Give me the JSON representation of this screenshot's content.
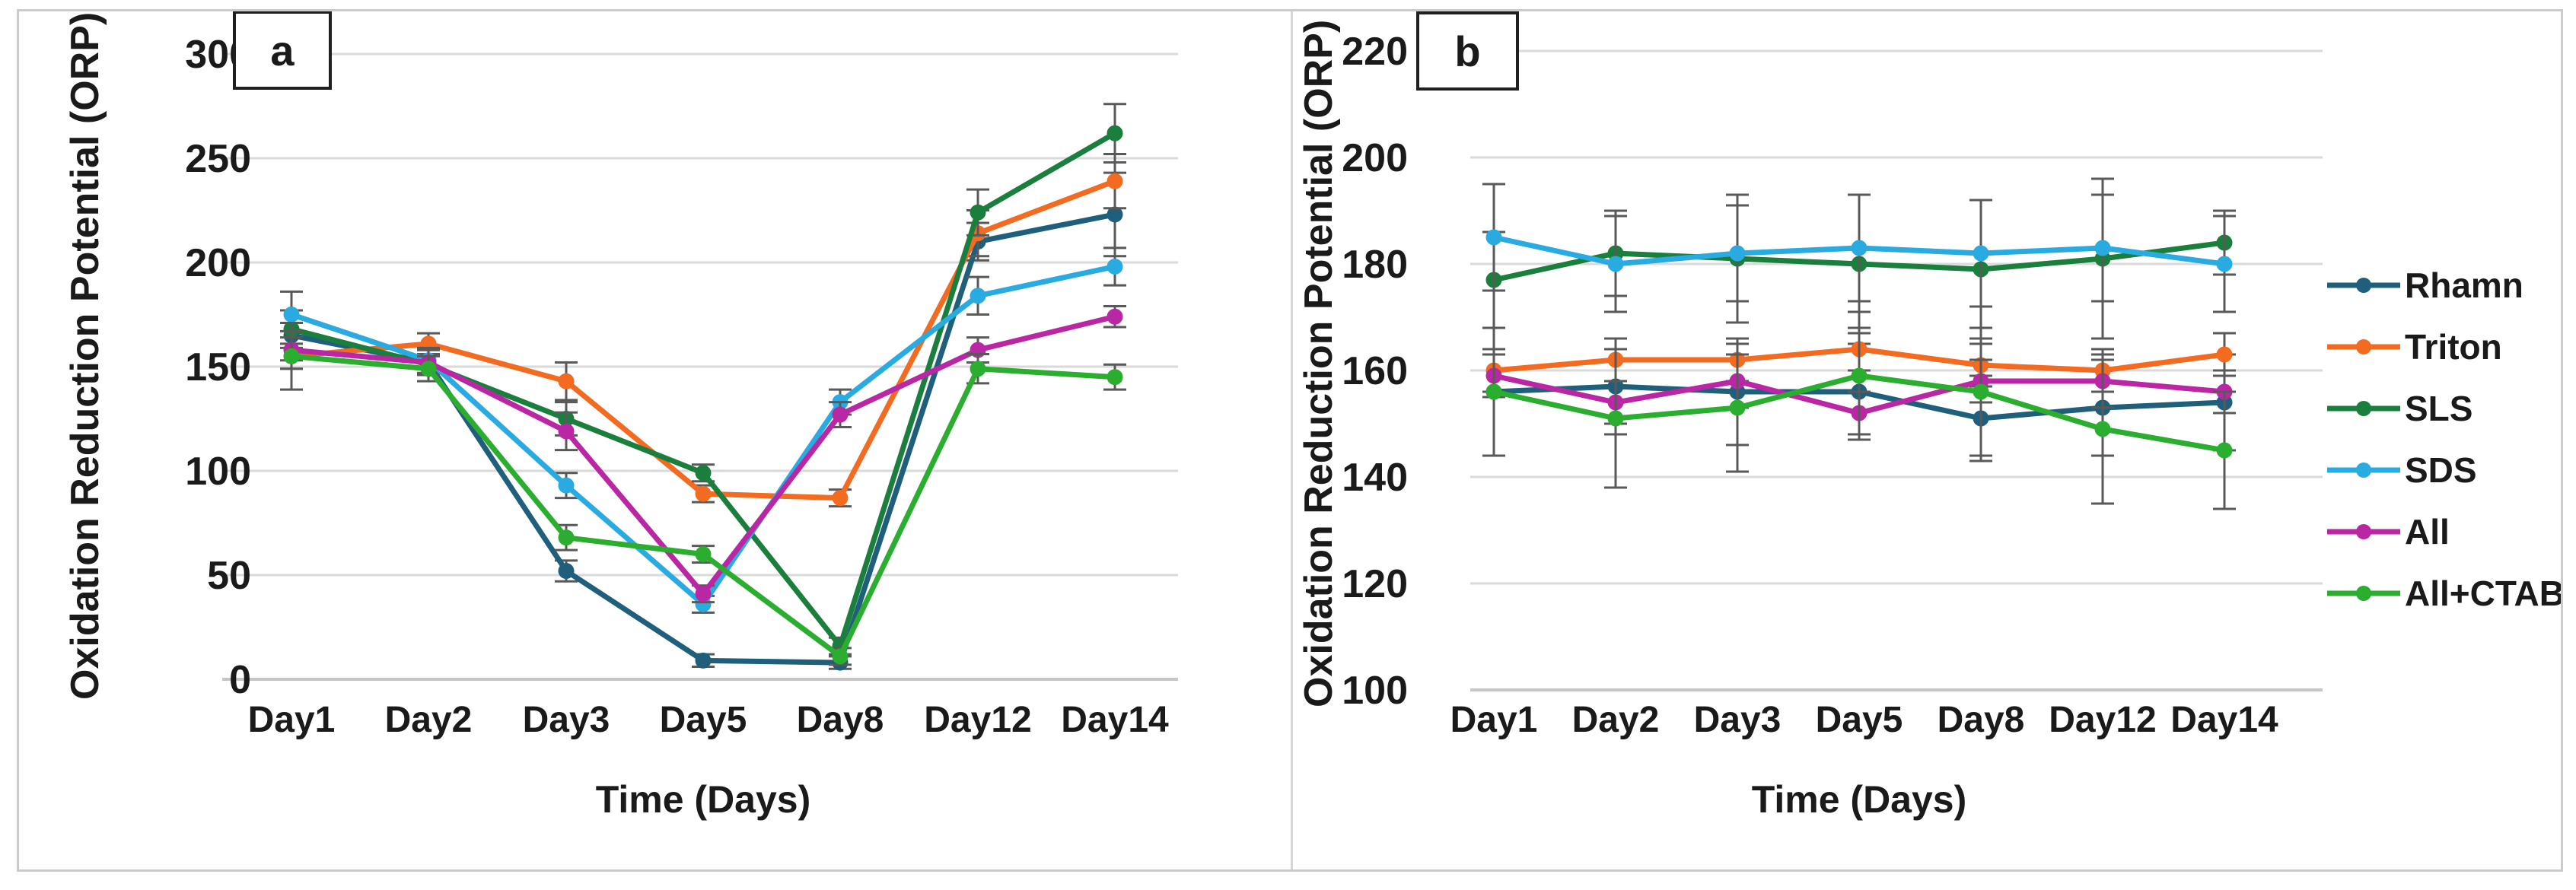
{
  "figure": {
    "panel_a_label": "a",
    "panel_b_label": "b",
    "y_axis_title": "Oxidation Reduction Potential (ORP)",
    "x_axis_title": "Time (Days)"
  },
  "legend": {
    "position": "right",
    "items": [
      {
        "label": "Rhamn",
        "color": "#1F5F7C"
      },
      {
        "label": "Triton",
        "color": "#F26B21"
      },
      {
        "label": "SLS",
        "color": "#1A7E3D"
      },
      {
        "label": "SDS",
        "color": "#29ABE2"
      },
      {
        "label": "All",
        "color": "#BA27A5"
      },
      {
        "label": "All+CTAB",
        "color": "#2BAE2F"
      }
    ]
  },
  "colors": {
    "gridline": "#dadada",
    "axis_line": "#c6c6c6",
    "error_bar": "#595959",
    "text": "#1a1a1a",
    "figure_border": "#cbcbcb"
  },
  "chart_data": [
    {
      "id": "a",
      "type": "line",
      "title": "",
      "categories": [
        "Day1",
        "Day2",
        "Day3",
        "Day5",
        "Day8",
        "Day12",
        "Day14"
      ],
      "xlabel": "Time (Days)",
      "ylabel": "Oxidation Reduction Potential (ORP)",
      "ylim": [
        0,
        300
      ],
      "ytick_step": 50,
      "grid": true,
      "error_bars": true,
      "legend_position": "shared-right",
      "series": [
        {
          "name": "Rhamn",
          "color": "#1F5F7C",
          "values": [
            165,
            152,
            52,
            9,
            8,
            210,
            223
          ],
          "errors": [
            12,
            6,
            5,
            3,
            3,
            9,
            20
          ]
        },
        {
          "name": "Triton",
          "color": "#F26B21",
          "values": [
            155,
            161,
            143,
            89,
            87,
            214,
            239
          ],
          "errors": [
            6,
            5,
            9,
            4,
            4,
            11,
            13
          ]
        },
        {
          "name": "SLS",
          "color": "#1A7E3D",
          "values": [
            168,
            151,
            125,
            99,
            16,
            224,
            262
          ],
          "errors": [
            9,
            5,
            8,
            4,
            4,
            11,
            14
          ]
        },
        {
          "name": "SDS",
          "color": "#29ABE2",
          "values": [
            175,
            153,
            93,
            36,
            133,
            184,
            198
          ],
          "errors": [
            11,
            6,
            6,
            4,
            6,
            9,
            9
          ]
        },
        {
          "name": "All",
          "color": "#BA27A5",
          "values": [
            158,
            152,
            119,
            41,
            127,
            158,
            174
          ],
          "errors": [
            9,
            6,
            9,
            4,
            6,
            6,
            5
          ]
        },
        {
          "name": "All+CTAB",
          "color": "#2BAE2F",
          "values": [
            155,
            149,
            68,
            60,
            11,
            149,
            145
          ],
          "errors": [
            16,
            6,
            6,
            4,
            4,
            7,
            6
          ]
        }
      ]
    },
    {
      "id": "b",
      "type": "line",
      "title": "",
      "categories": [
        "Day1",
        "Day2",
        "Day3",
        "Day5",
        "Day8",
        "Day12",
        "Day14"
      ],
      "xlabel": "Time (Days)",
      "ylabel": "Oxidation Reduction Potential (ORP)",
      "ylim": [
        100,
        220
      ],
      "ytick_step": 20,
      "grid": true,
      "error_bars": true,
      "legend_position": "shared-right",
      "series": [
        {
          "name": "Rhamn",
          "color": "#1F5F7C",
          "values": [
            156,
            157,
            156,
            156,
            151,
            153,
            154
          ],
          "errors": [
            12,
            9,
            10,
            9,
            8,
            9,
            9
          ]
        },
        {
          "name": "Triton",
          "color": "#F26B21",
          "values": [
            160,
            162,
            162,
            164,
            161,
            160,
            163
          ],
          "errors": [
            4,
            4,
            4,
            4,
            4,
            4,
            4
          ]
        },
        {
          "name": "SLS",
          "color": "#1A7E3D",
          "values": [
            177,
            182,
            181,
            180,
            179,
            181,
            184
          ],
          "errors": [
            9,
            8,
            12,
            13,
            13,
            15,
            6
          ]
        },
        {
          "name": "SDS",
          "color": "#29ABE2",
          "values": [
            185,
            180,
            182,
            183,
            182,
            183,
            180
          ],
          "errors": [
            10,
            9,
            9,
            10,
            10,
            10,
            9
          ]
        },
        {
          "name": "All",
          "color": "#BA27A5",
          "values": [
            159,
            154,
            158,
            152,
            158,
            158,
            156
          ],
          "errors": [
            4,
            4,
            5,
            4,
            4,
            5,
            4
          ]
        },
        {
          "name": "All+CTAB",
          "color": "#2BAE2F",
          "values": [
            156,
            151,
            153,
            159,
            156,
            149,
            145
          ],
          "errors": [
            12,
            13,
            12,
            12,
            12,
            14,
            11
          ]
        }
      ]
    }
  ]
}
